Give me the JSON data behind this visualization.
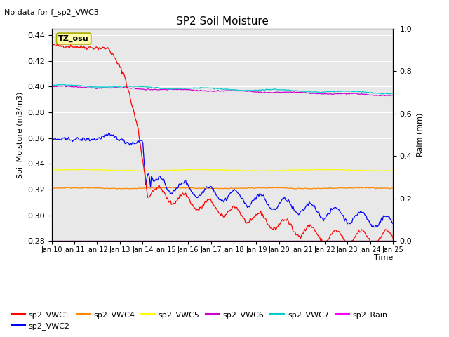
{
  "title": "SP2 Soil Moisture",
  "subtitle": "No data for f_sp2_VWC3",
  "xlabel": "Time",
  "ylabel_left": "Soil Moisture (m3/m3)",
  "ylabel_right": "Raim (mm)",
  "ylim_left": [
    0.28,
    0.445
  ],
  "ylim_right": [
    0.0,
    1.0
  ],
  "xlim": [
    0,
    15
  ],
  "yticks_left": [
    0.28,
    0.3,
    0.32,
    0.34,
    0.36,
    0.38,
    0.4,
    0.42,
    0.44
  ],
  "yticks_right": [
    0.0,
    0.2,
    0.4,
    0.6,
    0.8,
    1.0
  ],
  "xtick_labels": [
    "Jan 10",
    "Jan 11",
    "Jan 12",
    "Jan 13",
    "Jan 14",
    "Jan 15",
    "Jan 16",
    "Jan 17",
    "Jan 18",
    "Jan 19",
    "Jan 20",
    "Jan 21",
    "Jan 22",
    "Jan 23",
    "Jan 24",
    "Jan 25"
  ],
  "timezone_label": "TZ_osu",
  "series_colors": {
    "sp2_VWC1": "#ff0000",
    "sp2_VWC2": "#0000ff",
    "sp2_VWC4": "#ff8800",
    "sp2_VWC5": "#ffff00",
    "sp2_VWC6": "#cc00cc",
    "sp2_VWC7": "#00cccc",
    "sp2_Rain": "#ff00ff"
  },
  "background_color": "#e8e8e8",
  "figure_background": "#ffffff"
}
